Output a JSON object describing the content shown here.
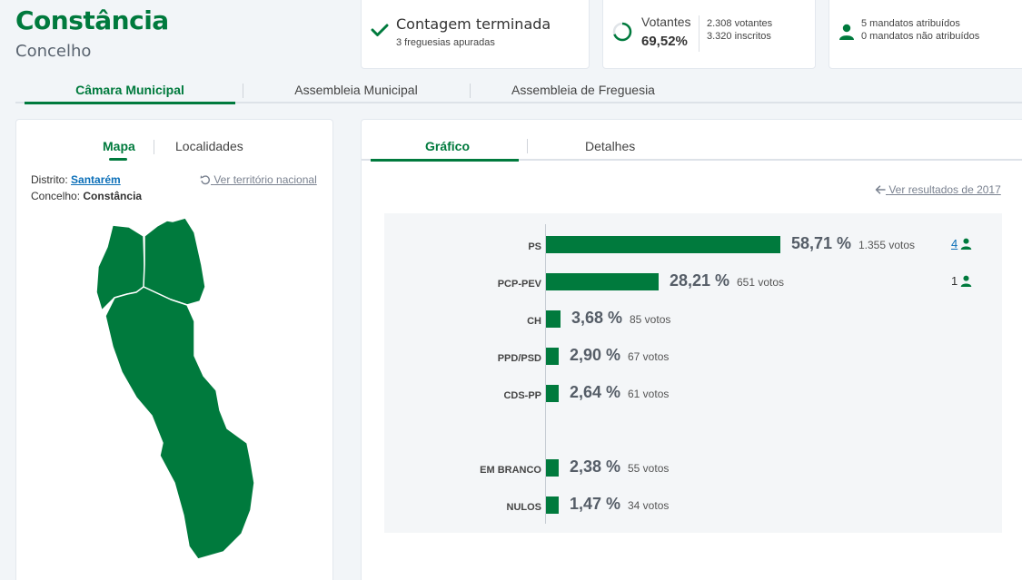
{
  "header": {
    "title": "Constância",
    "subtitle": "Concelho"
  },
  "status": {
    "title": "Contagem terminada",
    "detail": "3 freguesias apuradas"
  },
  "voters": {
    "label": "Votantes",
    "percentage": "69,52%",
    "voters_count": "2.308 votantes",
    "registered_count": "3.320 inscritos",
    "turnout_fraction": 0.6952
  },
  "mandates": {
    "assigned": "5 mandatos atribuídos",
    "unassigned": "0 mandatos não atribuídos"
  },
  "main_tabs": [
    "Câmara Municipal",
    "Assembleia Municipal",
    "Assembleia de Freguesia"
  ],
  "left_panel": {
    "tabs": [
      "Mapa",
      "Localidades"
    ],
    "district_label": "Distrito:",
    "district_value": "Santarém",
    "county_label": "Concelho:",
    "county_value": "Constância",
    "national_link": "Ver território nacional"
  },
  "right_panel": {
    "tabs": [
      "Gráfico",
      "Detalhes"
    ],
    "previous_link": "Ver resultados de 2017"
  },
  "colors": {
    "accent": "#007a3d",
    "link": "#0b6fb8"
  },
  "chart_data": {
    "type": "bar",
    "orientation": "horizontal",
    "categories": [
      "PS",
      "PCP-PEV",
      "CH",
      "PPD/PSD",
      "CDS-PP",
      "EM BRANCO",
      "NULOS"
    ],
    "values": [
      58.71,
      28.21,
      3.68,
      2.9,
      2.64,
      2.38,
      1.47
    ],
    "percent_labels": [
      "58,71 %",
      "28,21 %",
      "3,68 %",
      "2,90 %",
      "2,64 %",
      "2,38 %",
      "1,47 %"
    ],
    "vote_labels": [
      "1.355 votos",
      "651 votos",
      "85 votos",
      "67 votos",
      "61 votos",
      "55 votos",
      "34 votos"
    ],
    "votes": [
      1355,
      651,
      85,
      67,
      61,
      55,
      34
    ],
    "seats": [
      "4",
      "1",
      "",
      "",
      "",
      "",
      ""
    ],
    "legend": "none",
    "grid": false
  }
}
